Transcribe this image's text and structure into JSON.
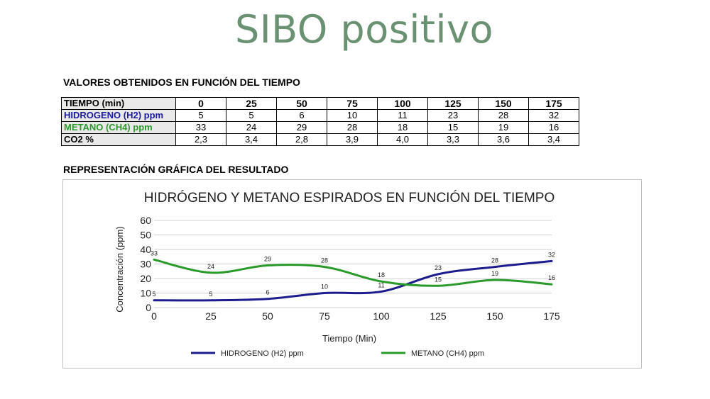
{
  "page_title": "SIBO positivo",
  "table_section_title": "VALORES OBTENIDOS EN FUNCIÓN DEL TIEMPO",
  "chart_section_title": "REPRESENTACIÓN GRÁFICA DEL RESULTADO",
  "table": {
    "rows": [
      {
        "label": "TIEMPO (min)",
        "color": "#000000",
        "values": [
          "0",
          "25",
          "50",
          "75",
          "100",
          "125",
          "150",
          "175"
        ]
      },
      {
        "label": "HIDROGENO (H2) ppm",
        "color": "#1c1c9e",
        "values": [
          "5",
          "5",
          "6",
          "10",
          "11",
          "23",
          "28",
          "32"
        ]
      },
      {
        "label": "METANO (CH4) ppm",
        "color": "#2a9a2a",
        "values": [
          "33",
          "24",
          "29",
          "28",
          "18",
          "15",
          "19",
          "16"
        ]
      },
      {
        "label": "CO2 %",
        "color": "#000000",
        "values": [
          "2,3",
          "3,4",
          "2,8",
          "3,9",
          "4,0",
          "3,3",
          "3,6",
          "3,4"
        ]
      }
    ]
  },
  "chart_data": {
    "type": "line",
    "title": "HIDRÓGENO Y METANO ESPIRADOS EN FUNCIÓN DEL TIEMPO",
    "xlabel": "Tiempo (Min)",
    "ylabel": "Concentración (ppm)",
    "x": [
      0,
      25,
      50,
      75,
      100,
      125,
      150,
      175
    ],
    "ylim": [
      0,
      60
    ],
    "yticks": [
      0,
      10,
      20,
      30,
      40,
      50,
      60
    ],
    "grid": true,
    "legend_position": "bottom",
    "series": [
      {
        "name": "HIDROGENO (H2) ppm",
        "color": "#1c1c8e",
        "values": [
          5,
          5,
          6,
          10,
          11,
          23,
          28,
          32
        ]
      },
      {
        "name": "METANO (CH4) ppm",
        "color": "#2a9a2a",
        "values": [
          33,
          24,
          29,
          28,
          18,
          15,
          19,
          16
        ]
      }
    ]
  }
}
